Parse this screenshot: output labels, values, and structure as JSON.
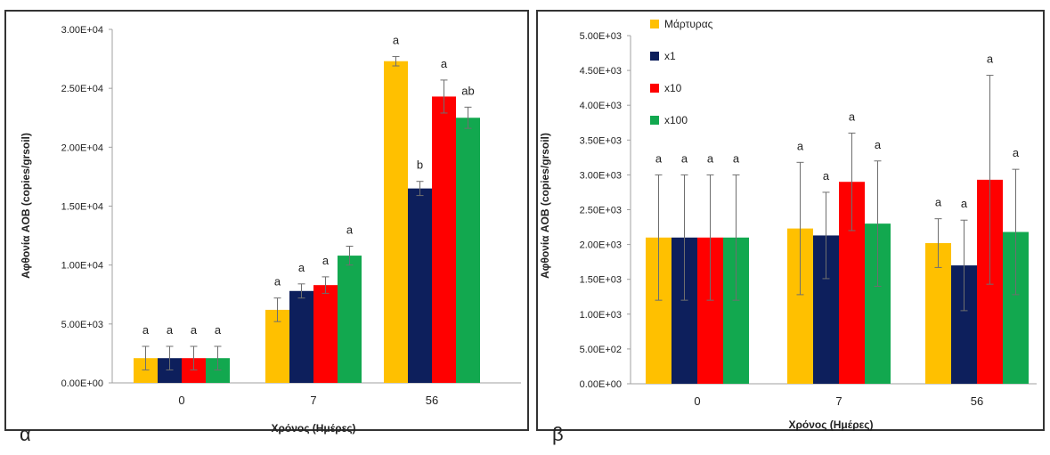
{
  "colors": {
    "series": [
      "#FFC000",
      "#0D1F5C",
      "#FF0000",
      "#12A84F"
    ],
    "error_bar": "#6E6E6E",
    "axis": "#A0A0A0",
    "text": "#222222",
    "border": "#333333"
  },
  "chart_data": [
    {
      "type": "bar",
      "panel_label": "α",
      "categories": [
        "0",
        "7",
        "56"
      ],
      "xlabel": "Χρόνος (Ημέρες)",
      "ylabel": "Αφθονία AOB (copies/grsoil)",
      "ylim": [
        0,
        30000
      ],
      "yticks": [
        "0.00E+00",
        "5.00E+03",
        "1.00E+04",
        "1.50E+04",
        "2.00E+04",
        "2.50E+04",
        "3.00E+04"
      ],
      "ytick_values": [
        0,
        5000,
        10000,
        15000,
        20000,
        25000,
        30000
      ],
      "grid": false,
      "legend": "none",
      "series": [
        {
          "values": [
            2100,
            6200,
            27300
          ],
          "errors": [
            1000,
            1000,
            400
          ],
          "labels": [
            "a",
            "a",
            "a"
          ]
        },
        {
          "values": [
            2100,
            7800,
            16500
          ],
          "errors": [
            1000,
            600,
            600
          ],
          "labels": [
            "a",
            "a",
            "b"
          ]
        },
        {
          "values": [
            2100,
            8300,
            24300
          ],
          "errors": [
            1000,
            700,
            1400
          ],
          "labels": [
            "a",
            "a",
            "a"
          ]
        },
        {
          "values": [
            2100,
            10800,
            22500
          ],
          "errors": [
            1000,
            800,
            900
          ],
          "labels": [
            "a",
            "a",
            "ab"
          ]
        }
      ]
    },
    {
      "type": "bar",
      "panel_label": "β",
      "categories": [
        "0",
        "7",
        "56"
      ],
      "xlabel": "Χρόνος (Ημέρες)",
      "ylabel": "Αφθονία AOB (copies/grsoil)",
      "ylim": [
        0,
        5000
      ],
      "yticks": [
        "0.00E+00",
        "5.00E+02",
        "1.00E+03",
        "1.50E+03",
        "2.00E+03",
        "2.50E+03",
        "3.00E+03",
        "3.50E+03",
        "4.00E+03",
        "4.50E+03",
        "5.00E+03"
      ],
      "ytick_values": [
        0,
        500,
        1000,
        1500,
        2000,
        2500,
        3000,
        3500,
        4000,
        4500,
        5000
      ],
      "grid": false,
      "legend": "top-left",
      "series": [
        {
          "name": "Μάρτυρας",
          "values": [
            2100,
            2230,
            2020
          ],
          "errors": [
            900,
            950,
            350
          ],
          "labels": [
            "a",
            "a",
            "a"
          ]
        },
        {
          "name": "x1",
          "values": [
            2100,
            2130,
            1700
          ],
          "errors": [
            900,
            620,
            650
          ],
          "labels": [
            "a",
            "a",
            "a"
          ]
        },
        {
          "name": "x10",
          "values": [
            2100,
            2900,
            2930
          ],
          "errors": [
            900,
            700,
            1500
          ],
          "labels": [
            "a",
            "a",
            "a"
          ]
        },
        {
          "name": "x100",
          "values": [
            2100,
            2300,
            2180
          ],
          "errors": [
            900,
            900,
            900
          ],
          "labels": [
            "a",
            "a",
            "a"
          ]
        }
      ]
    }
  ]
}
